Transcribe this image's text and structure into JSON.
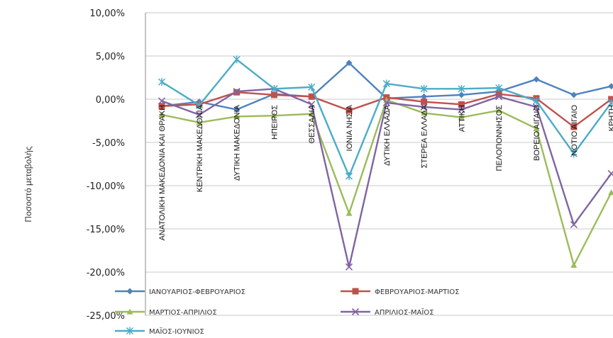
{
  "chart_data": {
    "type": "line",
    "ylabel": "Ποσοστό μεταβολής",
    "ylim": [
      -25,
      10
    ],
    "yticks": [
      10,
      5,
      0,
      -5,
      -10,
      -15,
      -20,
      -25
    ],
    "ytick_labels": [
      "10,00%",
      "5,00%",
      "0,00%",
      "-5,00%",
      "-10,00%",
      "-15,00%",
      "-20,00%",
      "-25,00%"
    ],
    "categories": [
      "ΑΝΑΤΟΛΙΚΗ ΜΑΚΕΔΟΝΙΑ ΚΑΙ ΘΡΑΚΗ",
      "ΚΕΝΤΡΙΚΗ ΜΑΚΕΔΟΝΙΑ",
      "ΔΥΤΙΚΗ ΜΑΚΕΔΟΝΙΑ",
      "ΗΠΕΙΡΟΣ",
      "ΘΕΣΣΑΛΙΑ",
      "ΙΟΝΙΑ ΝΗΣΙΑ",
      "ΔΥΤΙΚΗ ΕΛΛΑΔΑ",
      "ΣΤΕΡΕΑ ΕΛΛΑΔΑ",
      "ΑΤΤΙΚΗ",
      "ΠΕΛΟΠΟΝΝΗΣΟΣ",
      "ΒΟΡΕΙΟ ΑΙΓΑΙΟ",
      "ΝΟΤΙΟ ΑΙΓΑΙΟ",
      "ΚΡΗΤΗ"
    ],
    "series": [
      {
        "name": "ΙΑΝΟΥΑΡΙΟΣ-ΦΕΒΡΟΥΑΡΙΟΣ",
        "color": "#4f81bd",
        "marker": "diamond",
        "values": [
          -0.8,
          -0.3,
          -1.2,
          0.6,
          0.3,
          4.2,
          0.1,
          0.3,
          0.5,
          0.9,
          2.3,
          0.5,
          1.5
        ]
      },
      {
        "name": "ΦΕΒΡΟΥΑΡΙΟΣ-ΜΑΡΤΙΟΣ",
        "color": "#c0504d",
        "marker": "square",
        "values": [
          -0.8,
          -0.6,
          0.8,
          0.5,
          0.3,
          -1.3,
          0.2,
          -0.3,
          -0.6,
          0.6,
          0.1,
          -3.2,
          0.0
        ]
      },
      {
        "name": "ΜΑΡΤΙΟΣ-ΑΠΡΙΛΙΟΣ",
        "color": "#9bbb59",
        "marker": "triangle",
        "values": [
          -1.8,
          -2.7,
          -2.0,
          -1.9,
          -1.7,
          -13.2,
          -0.1,
          -1.6,
          -2.1,
          -1.3,
          -3.4,
          -19.2,
          -10.8
        ]
      },
      {
        "name": "ΑΠΡΙΛΙΟΣ-ΜΑΪΟΣ",
        "color": "#8064a2",
        "marker": "x",
        "values": [
          -0.2,
          -1.8,
          0.9,
          1.2,
          -0.6,
          -19.4,
          -0.4,
          -0.9,
          -1.2,
          0.3,
          -0.9,
          -14.5,
          -8.6
        ]
      },
      {
        "name": "ΜΑΪΟΣ-ΙΟΥΝΙΟΣ",
        "color": "#4bacc6",
        "marker": "star",
        "values": [
          2.0,
          -0.7,
          4.6,
          1.2,
          1.4,
          -8.9,
          1.8,
          1.2,
          1.2,
          1.3,
          -0.2,
          -6.3,
          -0.4
        ]
      }
    ]
  }
}
